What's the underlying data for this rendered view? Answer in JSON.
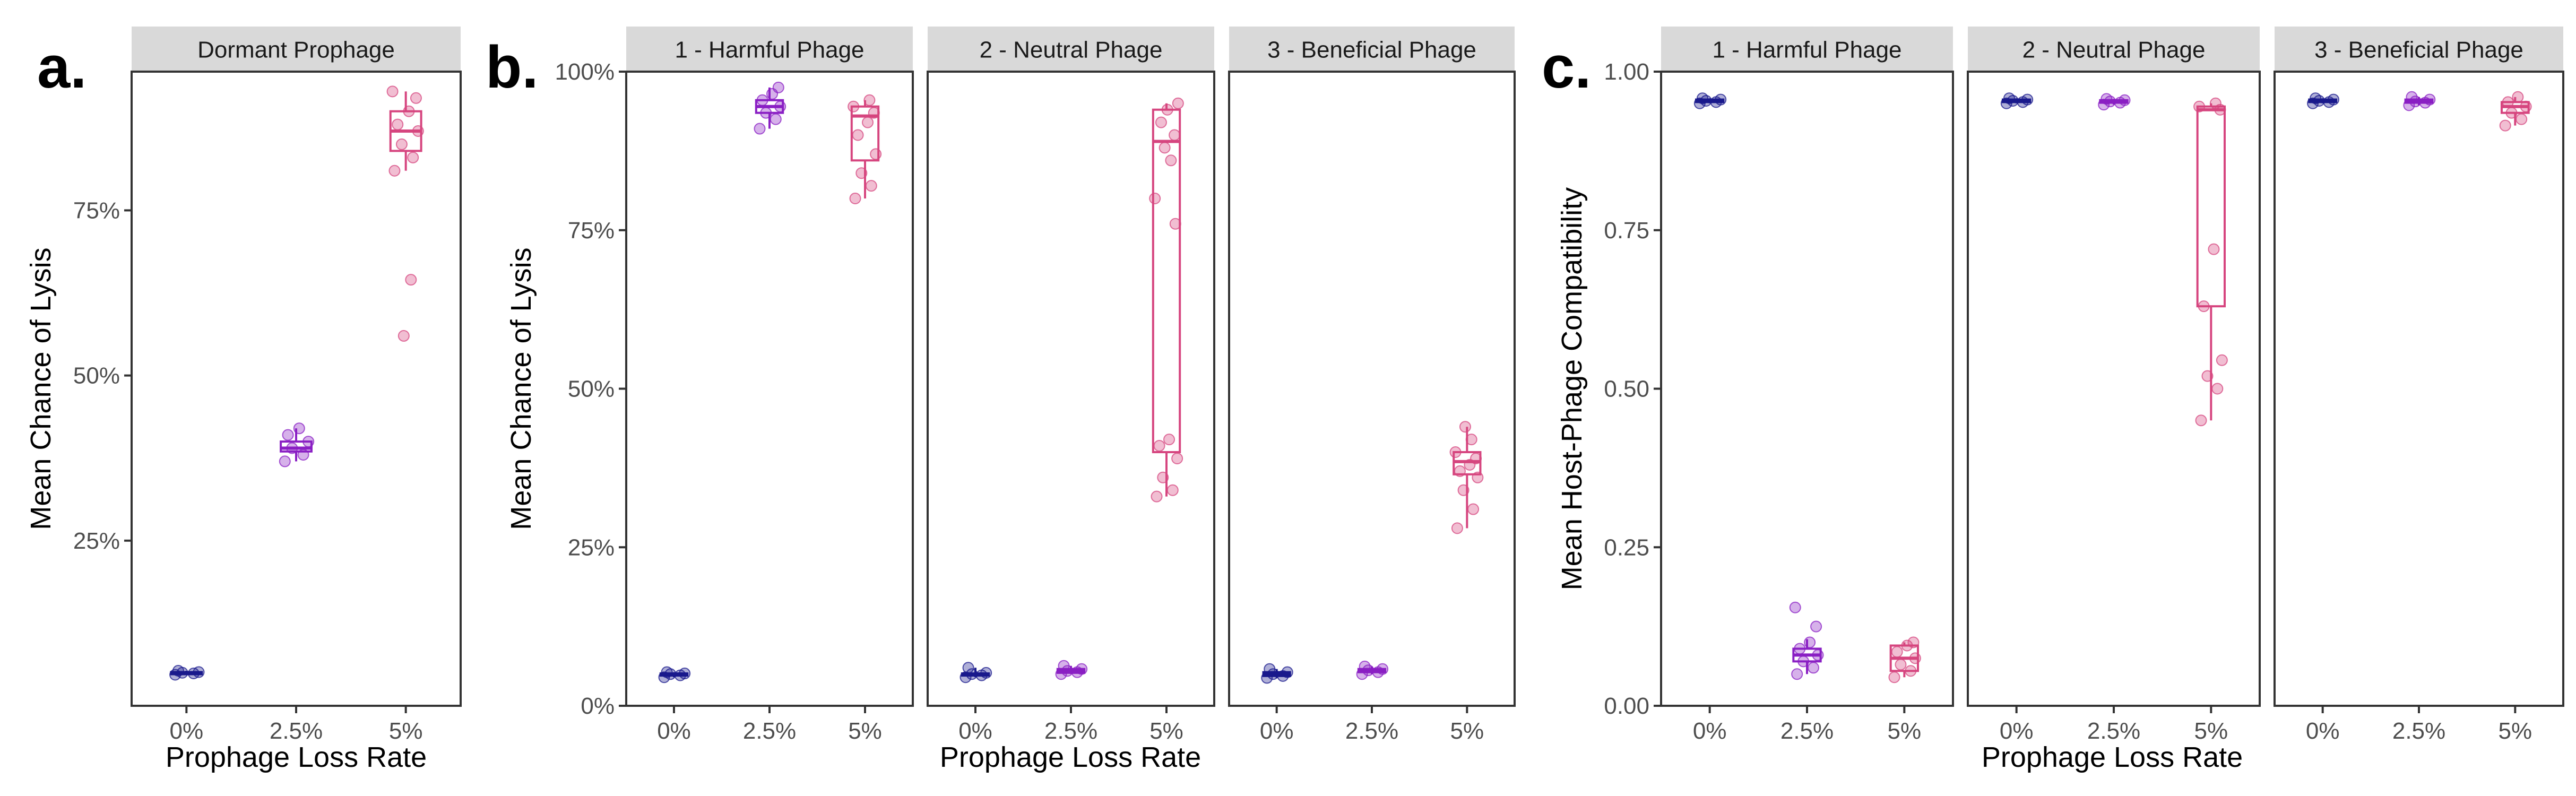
{
  "figure": {
    "panel_letters": [
      "a.",
      "b.",
      "c."
    ],
    "colors": {
      "0%": "#1a1a8c",
      "2.5%": "#8a1fc4",
      "5%": "#d6457f"
    }
  },
  "chart_data": [
    {
      "panel": "a.",
      "type": "box",
      "xlabel": "Prophage Loss Rate",
      "ylabel": "Mean Chance of Lysis",
      "categories": [
        "0%",
        "2.5%",
        "5%"
      ],
      "ylim": [
        0,
        0.96
      ],
      "yticks": [
        0.25,
        0.5,
        0.75
      ],
      "ytick_labels": [
        "25%",
        "50%",
        "75%"
      ],
      "facets": [
        {
          "strip": "Dormant Prophage",
          "boxes": [
            {
              "category": "0%",
              "q1": 0.049,
              "median": 0.05,
              "q3": 0.051,
              "whisker_low": 0.047,
              "whisker_high": 0.053,
              "points": [
                0.047,
                0.049,
                0.05,
                0.051,
                0.053
              ]
            },
            {
              "category": "2.5%",
              "q1": 0.385,
              "median": 0.39,
              "q3": 0.4,
              "whisker_low": 0.37,
              "whisker_high": 0.42,
              "points": [
                0.37,
                0.38,
                0.39,
                0.4,
                0.41,
                0.42
              ]
            },
            {
              "category": "5%",
              "q1": 0.84,
              "median": 0.87,
              "q3": 0.9,
              "whisker_low": 0.81,
              "whisker_high": 0.93,
              "points": [
                0.81,
                0.83,
                0.85,
                0.87,
                0.88,
                0.9,
                0.92,
                0.93,
                0.645,
                0.56
              ]
            }
          ]
        }
      ]
    },
    {
      "panel": "b.",
      "type": "box",
      "xlabel": "Prophage Loss Rate",
      "ylabel": "Mean Chance of Lysis",
      "categories": [
        "0%",
        "2.5%",
        "5%"
      ],
      "ylim": [
        0,
        1.0
      ],
      "yticks": [
        0,
        0.25,
        0.5,
        0.75,
        1.0
      ],
      "ytick_labels": [
        "0%",
        "25%",
        "50%",
        "75%",
        "100%"
      ],
      "facets": [
        {
          "strip": "1 - Harmful Phage",
          "boxes": [
            {
              "category": "0%",
              "q1": 0.048,
              "median": 0.05,
              "q3": 0.051,
              "whisker_low": 0.045,
              "whisker_high": 0.053,
              "points": [
                0.045,
                0.048,
                0.05,
                0.051,
                0.053
              ]
            },
            {
              "category": "2.5%",
              "q1": 0.935,
              "median": 0.945,
              "q3": 0.955,
              "whisker_low": 0.91,
              "whisker_high": 0.975,
              "points": [
                0.91,
                0.925,
                0.935,
                0.945,
                0.955,
                0.965,
                0.975
              ]
            },
            {
              "category": "5%",
              "q1": 0.86,
              "median": 0.93,
              "q3": 0.945,
              "whisker_low": 0.8,
              "whisker_high": 0.955,
              "points": [
                0.8,
                0.82,
                0.84,
                0.87,
                0.9,
                0.92,
                0.935,
                0.945,
                0.955
              ]
            }
          ]
        },
        {
          "strip": "2 - Neutral Phage",
          "boxes": [
            {
              "category": "0%",
              "q1": 0.048,
              "median": 0.05,
              "q3": 0.051,
              "whisker_low": 0.045,
              "whisker_high": 0.06,
              "points": [
                0.045,
                0.048,
                0.05,
                0.052,
                0.06
              ]
            },
            {
              "category": "2.5%",
              "q1": 0.052,
              "median": 0.055,
              "q3": 0.058,
              "whisker_low": 0.05,
              "whisker_high": 0.063,
              "points": [
                0.05,
                0.053,
                0.055,
                0.058,
                0.063
              ]
            },
            {
              "category": "5%",
              "q1": 0.4,
              "median": 0.89,
              "q3": 0.94,
              "whisker_low": 0.33,
              "whisker_high": 0.95,
              "points": [
                0.33,
                0.34,
                0.36,
                0.39,
                0.41,
                0.42,
                0.76,
                0.8,
                0.86,
                0.88,
                0.9,
                0.92,
                0.94,
                0.95
              ]
            }
          ]
        },
        {
          "strip": "3 - Beneficial Phage",
          "boxes": [
            {
              "category": "0%",
              "q1": 0.047,
              "median": 0.05,
              "q3": 0.053,
              "whisker_low": 0.044,
              "whisker_high": 0.058,
              "points": [
                0.044,
                0.047,
                0.05,
                0.053,
                0.058
              ]
            },
            {
              "category": "2.5%",
              "q1": 0.053,
              "median": 0.056,
              "q3": 0.058,
              "whisker_low": 0.05,
              "whisker_high": 0.062,
              "points": [
                0.05,
                0.053,
                0.056,
                0.058,
                0.062
              ]
            },
            {
              "category": "5%",
              "q1": 0.365,
              "median": 0.385,
              "q3": 0.4,
              "whisker_low": 0.28,
              "whisker_high": 0.44,
              "points": [
                0.28,
                0.31,
                0.34,
                0.36,
                0.37,
                0.38,
                0.39,
                0.4,
                0.42,
                0.44
              ]
            }
          ]
        }
      ]
    },
    {
      "panel": "c.",
      "type": "box",
      "xlabel": "Prophage Loss Rate",
      "ylabel": "Mean Host-Phage Compatibility",
      "categories": [
        "0%",
        "2.5%",
        "5%"
      ],
      "ylim": [
        0,
        1.0
      ],
      "yticks": [
        0,
        0.25,
        0.5,
        0.75,
        1.0
      ],
      "ytick_labels": [
        "0.00",
        "0.25",
        "0.50",
        "0.75",
        "1.00"
      ],
      "facets": [
        {
          "strip": "1 - Harmful Phage",
          "boxes": [
            {
              "category": "0%",
              "q1": 0.952,
              "median": 0.954,
              "q3": 0.956,
              "whisker_low": 0.95,
              "whisker_high": 0.958,
              "points": [
                0.95,
                0.952,
                0.954,
                0.956,
                0.958
              ]
            },
            {
              "category": "2.5%",
              "q1": 0.07,
              "median": 0.08,
              "q3": 0.09,
              "whisker_low": 0.05,
              "whisker_high": 0.105,
              "points": [
                0.05,
                0.06,
                0.07,
                0.08,
                0.09,
                0.1,
                0.125,
                0.155
              ]
            },
            {
              "category": "5%",
              "q1": 0.055,
              "median": 0.075,
              "q3": 0.095,
              "whisker_low": 0.045,
              "whisker_high": 0.1,
              "points": [
                0.045,
                0.055,
                0.065,
                0.075,
                0.085,
                0.095,
                0.1
              ]
            }
          ]
        },
        {
          "strip": "2 - Neutral Phage",
          "boxes": [
            {
              "category": "0%",
              "q1": 0.952,
              "median": 0.954,
              "q3": 0.956,
              "whisker_low": 0.95,
              "whisker_high": 0.958,
              "points": [
                0.95,
                0.952,
                0.954,
                0.956,
                0.958
              ]
            },
            {
              "category": "2.5%",
              "q1": 0.951,
              "median": 0.953,
              "q3": 0.955,
              "whisker_low": 0.948,
              "whisker_high": 0.957,
              "points": [
                0.948,
                0.951,
                0.953,
                0.955,
                0.957
              ]
            },
            {
              "category": "5%",
              "q1": 0.63,
              "median": 0.94,
              "q3": 0.945,
              "whisker_low": 0.45,
              "whisker_high": 0.95,
              "points": [
                0.45,
                0.5,
                0.52,
                0.545,
                0.63,
                0.72,
                0.94,
                0.945,
                0.95
              ]
            }
          ]
        },
        {
          "strip": "3 - Beneficial Phage",
          "boxes": [
            {
              "category": "0%",
              "q1": 0.952,
              "median": 0.954,
              "q3": 0.956,
              "whisker_low": 0.95,
              "whisker_high": 0.958,
              "points": [
                0.95,
                0.952,
                0.954,
                0.956,
                0.958
              ]
            },
            {
              "category": "2.5%",
              "q1": 0.951,
              "median": 0.953,
              "q3": 0.956,
              "whisker_low": 0.947,
              "whisker_high": 0.96,
              "points": [
                0.947,
                0.951,
                0.953,
                0.956,
                0.96
              ]
            },
            {
              "category": "5%",
              "q1": 0.935,
              "median": 0.945,
              "q3": 0.952,
              "whisker_low": 0.915,
              "whisker_high": 0.96,
              "points": [
                0.915,
                0.925,
                0.935,
                0.945,
                0.952,
                0.96
              ]
            }
          ]
        }
      ]
    }
  ]
}
